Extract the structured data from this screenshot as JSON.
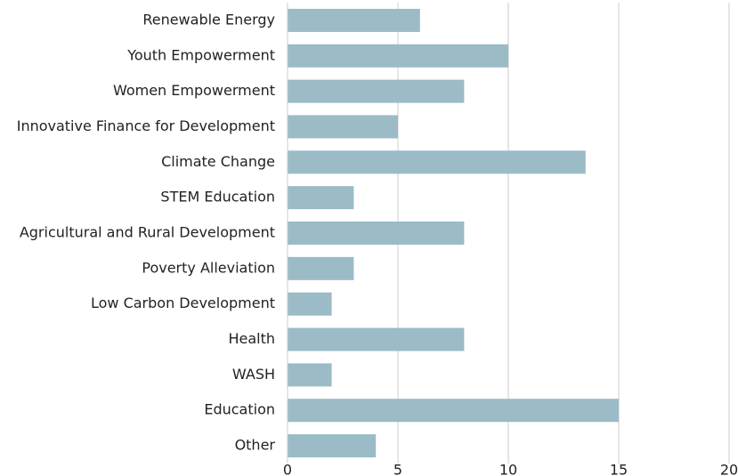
{
  "chart_data": {
    "type": "bar",
    "orientation": "horizontal",
    "categories": [
      "Renewable Energy",
      "Youth Empowerment",
      "Women Empowerment",
      "Innovative Finance for Development",
      "Climate Change",
      "STEM Education",
      "Agricultural and Rural Development",
      "Poverty Alleviation",
      "Low Carbon Development",
      "Health",
      "WASH",
      "Education",
      "Other"
    ],
    "values": [
      6,
      10,
      8,
      5,
      13.5,
      3,
      8,
      3,
      2,
      8,
      2,
      15,
      4
    ],
    "color": "#9bbbc7",
    "xlim": [
      0,
      20
    ],
    "xticks": [
      0,
      5,
      10,
      15,
      20
    ],
    "grid": true
  }
}
